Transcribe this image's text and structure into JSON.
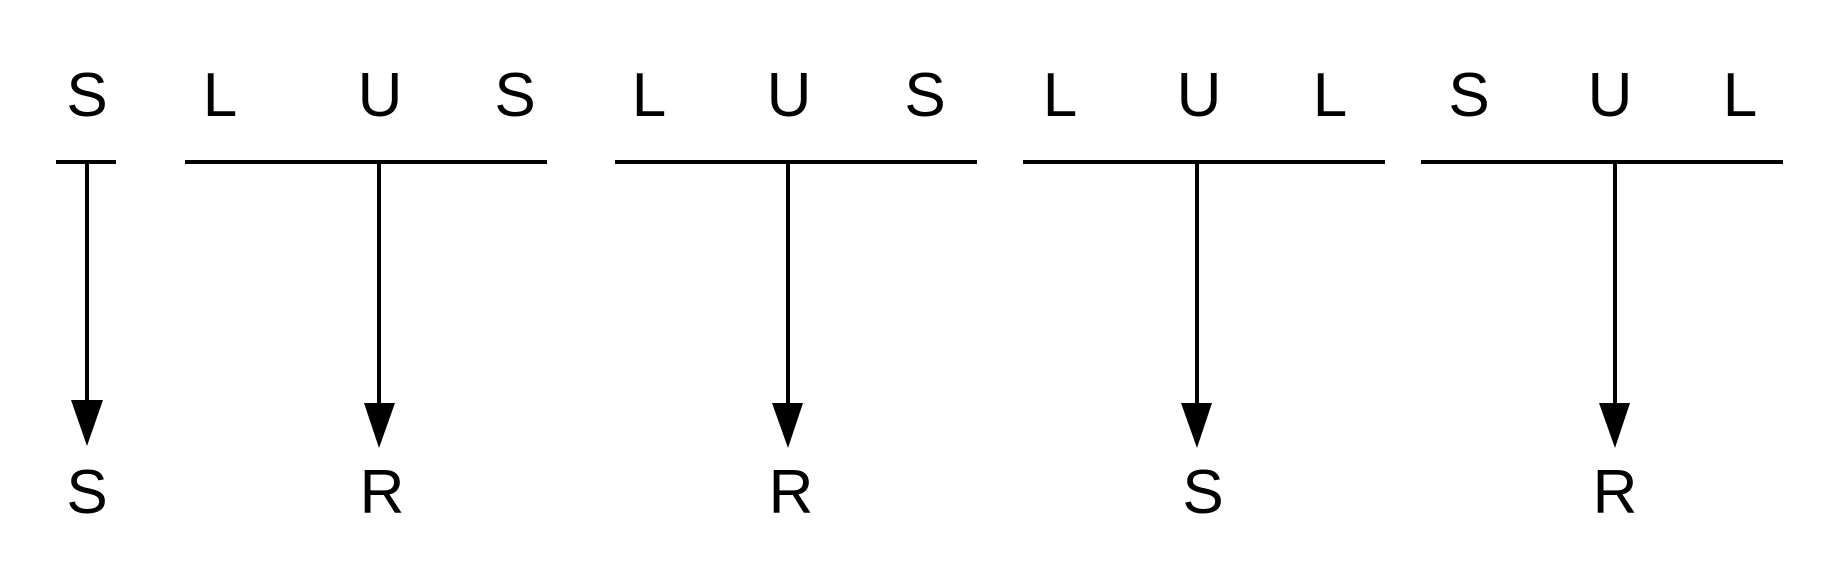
{
  "diagram": {
    "input_letters": [
      "S",
      "L",
      "U",
      "S",
      "L",
      "U",
      "S",
      "L",
      "U",
      "L",
      "S",
      "U",
      "L"
    ],
    "groups": [
      {
        "members": [
          "S"
        ],
        "output": "S"
      },
      {
        "members": [
          "L",
          "U",
          "S"
        ],
        "output": "R"
      },
      {
        "members": [
          "L",
          "U",
          "S"
        ],
        "output": "R"
      },
      {
        "members": [
          "L",
          "U",
          "L"
        ],
        "output": "S"
      },
      {
        "members": [
          "S",
          "U",
          "L"
        ],
        "output": "R"
      }
    ]
  },
  "colors": {
    "ink": "#000000",
    "background": "#ffffff"
  }
}
